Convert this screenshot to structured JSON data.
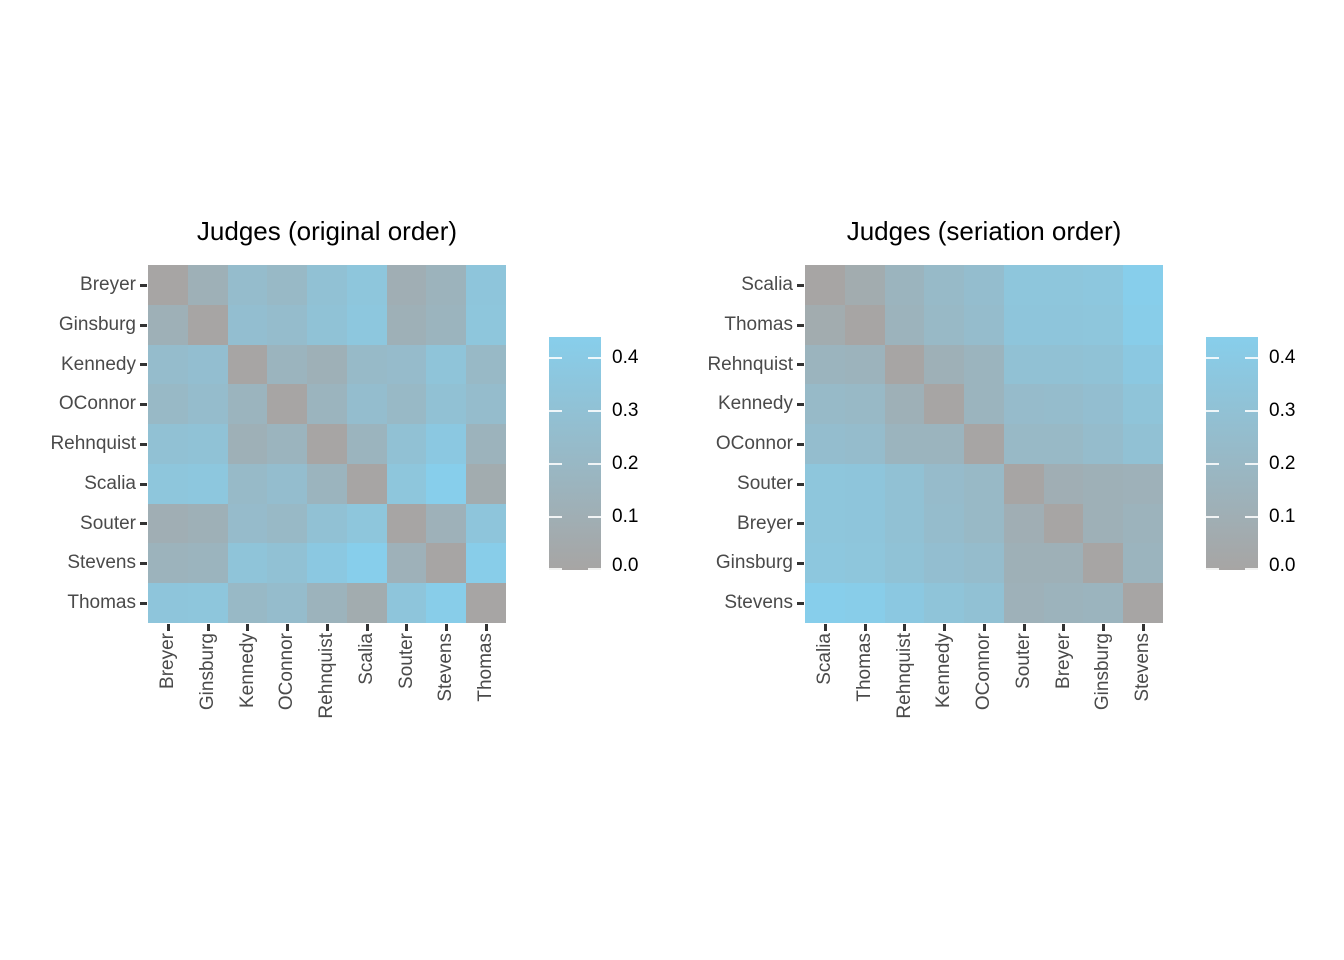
{
  "figure": {
    "background": "#ffffff",
    "description": "Two heatmaps of pairwise disagreement distances between US Supreme Court judges, before and after seriation"
  },
  "color_scale": {
    "low_color": "#A7A5A4",
    "high_color": "#87CEEB",
    "domain_min": 0.0,
    "domain_max": 0.44
  },
  "chart_data": [
    {
      "type": "heatmap",
      "title": "Judges (original order)",
      "row_labels": [
        "Breyer",
        "Ginsburg",
        "Kennedy",
        "OConnor",
        "Rehnquist",
        "Scalia",
        "Souter",
        "Stevens",
        "Thomas"
      ],
      "col_labels": [
        "Breyer",
        "Ginsburg",
        "Kennedy",
        "OConnor",
        "Rehnquist",
        "Scalia",
        "Souter",
        "Stevens",
        "Thomas"
      ],
      "matrix": [
        [
          0.0,
          0.12,
          0.25,
          0.21,
          0.3,
          0.35,
          0.1,
          0.15,
          0.34
        ],
        [
          0.12,
          0.0,
          0.27,
          0.25,
          0.31,
          0.36,
          0.12,
          0.16,
          0.35
        ],
        [
          0.25,
          0.27,
          0.0,
          0.16,
          0.12,
          0.22,
          0.24,
          0.33,
          0.21
        ],
        [
          0.21,
          0.25,
          0.16,
          0.0,
          0.16,
          0.26,
          0.21,
          0.3,
          0.25
        ],
        [
          0.3,
          0.31,
          0.12,
          0.16,
          0.0,
          0.16,
          0.3,
          0.38,
          0.15
        ],
        [
          0.35,
          0.36,
          0.22,
          0.26,
          0.16,
          0.0,
          0.35,
          0.44,
          0.07
        ],
        [
          0.1,
          0.12,
          0.24,
          0.21,
          0.3,
          0.35,
          0.0,
          0.13,
          0.34
        ],
        [
          0.15,
          0.16,
          0.33,
          0.3,
          0.38,
          0.44,
          0.13,
          0.0,
          0.43
        ],
        [
          0.34,
          0.35,
          0.21,
          0.25,
          0.15,
          0.07,
          0.34,
          0.43,
          0.0
        ]
      ],
      "legend": {
        "tick_labels": [
          "0.4",
          "0.3",
          "0.2",
          "0.1",
          "0.0"
        ],
        "tick_values": [
          0.4,
          0.3,
          0.2,
          0.1,
          0.0
        ]
      }
    },
    {
      "type": "heatmap",
      "title": "Judges (seriation order)",
      "row_labels": [
        "Scalia",
        "Thomas",
        "Rehnquist",
        "Kennedy",
        "OConnor",
        "Souter",
        "Breyer",
        "Ginsburg",
        "Stevens"
      ],
      "col_labels": [
        "Scalia",
        "Thomas",
        "Rehnquist",
        "Kennedy",
        "OConnor",
        "Souter",
        "Breyer",
        "Ginsburg",
        "Stevens"
      ],
      "matrix": [
        [
          0.0,
          0.07,
          0.16,
          0.22,
          0.26,
          0.35,
          0.35,
          0.36,
          0.44
        ],
        [
          0.07,
          0.0,
          0.15,
          0.21,
          0.25,
          0.34,
          0.34,
          0.35,
          0.43
        ],
        [
          0.16,
          0.15,
          0.0,
          0.12,
          0.16,
          0.3,
          0.3,
          0.31,
          0.38
        ],
        [
          0.22,
          0.21,
          0.12,
          0.0,
          0.16,
          0.24,
          0.25,
          0.27,
          0.33
        ],
        [
          0.26,
          0.25,
          0.16,
          0.16,
          0.0,
          0.21,
          0.21,
          0.25,
          0.3
        ],
        [
          0.35,
          0.34,
          0.3,
          0.24,
          0.21,
          0.0,
          0.1,
          0.12,
          0.13
        ],
        [
          0.35,
          0.34,
          0.3,
          0.25,
          0.21,
          0.1,
          0.0,
          0.12,
          0.15
        ],
        [
          0.36,
          0.35,
          0.31,
          0.27,
          0.25,
          0.12,
          0.12,
          0.0,
          0.16
        ],
        [
          0.44,
          0.43,
          0.38,
          0.33,
          0.3,
          0.13,
          0.15,
          0.16,
          0.0
        ]
      ],
      "legend": {
        "tick_labels": [
          "0.4",
          "0.3",
          "0.2",
          "0.1",
          "0.0"
        ],
        "tick_values": [
          0.4,
          0.3,
          0.2,
          0.1,
          0.0
        ]
      }
    }
  ]
}
